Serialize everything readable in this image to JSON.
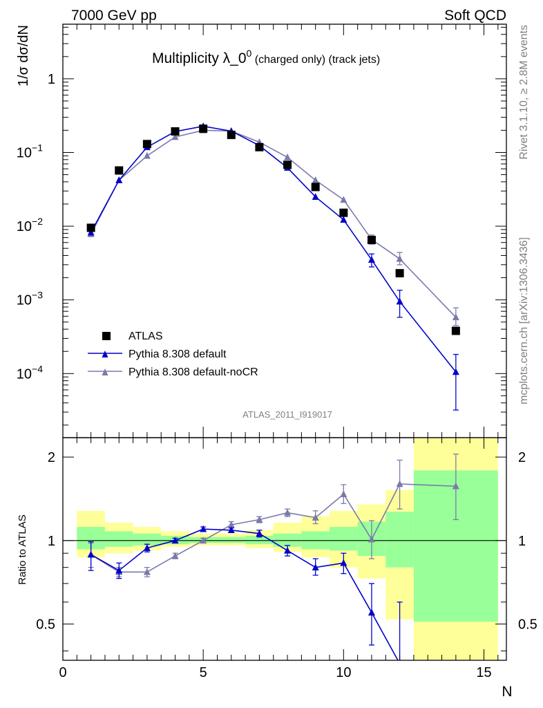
{
  "header": {
    "left": "7000 GeV pp",
    "right": "Soft QCD"
  },
  "side_labels": {
    "rivet": "Rivet 3.1.10, ≥ 2.8M events",
    "mcplots": "mcplots.cern.ch [arXiv:1306.3436]"
  },
  "analysis_id": "ATLAS_2011_I919017",
  "chart_data": [
    {
      "type": "scatter",
      "title_main": "Multiplicity λ_0",
      "title_sup": "0",
      "title_suffix": " (charged only) (track jets)",
      "ylabel": "1/σ dσ/dN",
      "yscale": "log",
      "ylim": [
        1.35e-05,
        5.5
      ],
      "xlim": [
        0,
        15.8
      ],
      "yticks": [
        {
          "value": 1,
          "base": "1",
          "exp": ""
        },
        {
          "value": 0.1,
          "base": "10",
          "exp": "−1"
        },
        {
          "value": 0.01,
          "base": "10",
          "exp": "−2"
        },
        {
          "value": 0.001,
          "base": "10",
          "exp": "−3"
        },
        {
          "value": 0.0001,
          "base": "10",
          "exp": "−4"
        }
      ],
      "legend": [
        {
          "label": "ATLAS",
          "color": "#000000",
          "marker": "square"
        },
        {
          "label": "Pythia 8.308 default",
          "color": "#0000cc",
          "marker": "triangle"
        },
        {
          "label": "Pythia 8.308 default-noCR",
          "color": "#7a7aaa",
          "marker": "triangle"
        }
      ],
      "series": [
        {
          "name": "ATLAS",
          "x": [
            1,
            2,
            3,
            4,
            5,
            6,
            7,
            8,
            9,
            10,
            11,
            12,
            14
          ],
          "y": [
            0.0095,
            0.057,
            0.13,
            0.193,
            0.21,
            0.173,
            0.118,
            0.068,
            0.034,
            0.0152,
            0.0065,
            0.0023,
            0.00038
          ]
        },
        {
          "name": "Pythia 8.308 default",
          "x": [
            1,
            2,
            3,
            4,
            5,
            6,
            7,
            8,
            9,
            10,
            11,
            12,
            14
          ],
          "y": [
            0.0082,
            0.042,
            0.118,
            0.192,
            0.227,
            0.195,
            0.124,
            0.062,
            0.025,
            0.0122,
            0.0035,
            0.00095,
            0.000105
          ],
          "yerr_lo": [
            0,
            0,
            0,
            0,
            0,
            0,
            0,
            0,
            0,
            0,
            0.0028,
            0.00058,
            3.2e-05
          ],
          "yerr_hi": [
            0,
            0,
            0,
            0,
            0,
            0,
            0,
            0,
            0,
            0,
            0.0042,
            0.00135,
            0.000182
          ]
        },
        {
          "name": "Pythia 8.308 default-noCR",
          "x": [
            1,
            2,
            3,
            4,
            5,
            6,
            7,
            8,
            9,
            10,
            11,
            12,
            14
          ],
          "y": [
            0.0078,
            0.042,
            0.09,
            0.162,
            0.2,
            0.195,
            0.138,
            0.086,
            0.042,
            0.0228,
            0.0066,
            0.0036,
            0.00058
          ],
          "yerr_lo": [
            0,
            0,
            0,
            0,
            0,
            0,
            0,
            0,
            0,
            0,
            0.0057,
            0.003,
            0.00045
          ],
          "yerr_hi": [
            0,
            0,
            0,
            0,
            0,
            0,
            0,
            0,
            0,
            0,
            0.0076,
            0.0044,
            0.00078
          ]
        }
      ]
    },
    {
      "type": "scatter",
      "ylabel": "Ratio to ATLAS",
      "xlabel": "N",
      "yscale": "log",
      "ylim": [
        0.37,
        2.35
      ],
      "xlim": [
        0,
        15.8
      ],
      "yticks": [
        {
          "value": 2,
          "label": "2"
        },
        {
          "value": 1,
          "label": "1"
        },
        {
          "value": 0.5,
          "label": "0.5"
        }
      ],
      "xticks": [
        0,
        5,
        10,
        15
      ],
      "band_edges": [
        0.5,
        1.5,
        2.5,
        3.5,
        4.5,
        5.5,
        6.5,
        7.5,
        8.5,
        9.5,
        10.5,
        11.5,
        12.5,
        15.5
      ],
      "green_band": {
        "lo": [
          0.93,
          0.95,
          0.96,
          0.97,
          0.98,
          0.98,
          0.97,
          0.95,
          0.93,
          0.92,
          0.88,
          0.8,
          0.51
        ],
        "hi": [
          1.12,
          1.08,
          1.06,
          1.04,
          1.03,
          1.03,
          1.04,
          1.06,
          1.08,
          1.12,
          1.17,
          1.27,
          1.79
        ]
      },
      "yellow_band": {
        "lo": [
          0.87,
          0.9,
          0.92,
          0.95,
          0.96,
          0.96,
          0.94,
          0.91,
          0.87,
          0.8,
          0.73,
          0.52,
          0.3
        ],
        "hi": [
          1.28,
          1.16,
          1.12,
          1.08,
          1.06,
          1.06,
          1.09,
          1.16,
          1.22,
          1.28,
          1.35,
          1.52,
          2.6
        ]
      },
      "series": [
        {
          "name": "Pythia 8.308 default",
          "x": [
            1,
            2,
            3,
            4,
            5,
            6,
            7,
            8,
            9,
            10,
            11,
            12
          ],
          "y": [
            0.89,
            0.78,
            0.94,
            1.0,
            1.1,
            1.09,
            1.06,
            0.92,
            0.8,
            0.83,
            0.55,
            0.36
          ],
          "yerr_lo": [
            0.78,
            0.73,
            0.91,
            0.98,
            1.08,
            1.07,
            1.03,
            0.88,
            0.75,
            0.76,
            0.42,
            0.3
          ],
          "yerr_hi": [
            0.99,
            0.83,
            0.97,
            1.02,
            1.12,
            1.11,
            1.09,
            0.96,
            0.86,
            0.9,
            0.7,
            0.6
          ]
        },
        {
          "name": "Pythia 8.308 default-noCR",
          "x": [
            1,
            2,
            3,
            4,
            5,
            6,
            7,
            8,
            9,
            10,
            11,
            12,
            14
          ],
          "y": [
            0.89,
            0.77,
            0.77,
            0.88,
            1.0,
            1.14,
            1.19,
            1.26,
            1.21,
            1.47,
            1.01,
            1.6,
            1.57
          ],
          "yerr_lo": [
            0.8,
            0.74,
            0.74,
            0.86,
            0.98,
            1.11,
            1.16,
            1.22,
            1.15,
            1.36,
            0.86,
            1.3,
            1.19
          ],
          "yerr_hi": [
            0.98,
            0.8,
            0.8,
            0.9,
            1.02,
            1.17,
            1.22,
            1.3,
            1.28,
            1.59,
            1.18,
            1.95,
            2.05
          ]
        }
      ]
    }
  ]
}
